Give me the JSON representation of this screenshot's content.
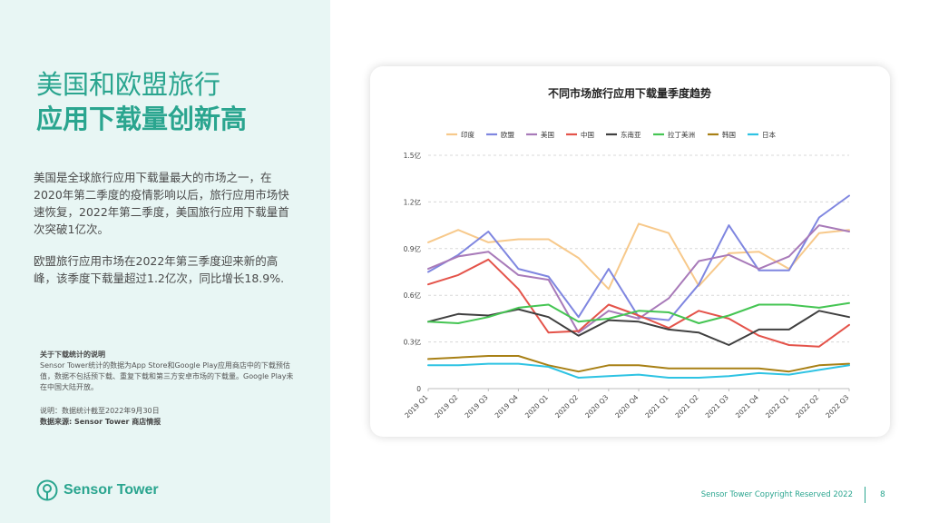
{
  "headline": {
    "line1": "美国和欧盟旅行",
    "line2": "应用下载量创新高"
  },
  "paragraphs": [
    "美国是全球旅行应用下载量最大的市场之一，在2020年第二季度的疫情影响以后，旅行应用市场快速恢复，2022年第二季度，美国旅行应用下载量首次突破1亿次。",
    "欧盟旅行应用市场在2022年第三季度迎来新的高峰，该季度下载量超过1.2亿次，同比增长18.9%."
  ],
  "note": {
    "title": "关于下载统计的说明",
    "body": "Sensor Tower统计的数据为App Store和Google Play应用商店中的下载预估值，数据不包括预下载、重复下载和第三方安卓市场的下载量。Google Play未在中国大陆开放。",
    "date_note": "说明：数据统计截至2022年9月30日",
    "source": "数据来源: Sensor Tower 商店情报"
  },
  "brand": {
    "name": "Sensor Tower",
    "color": "#2aa58f",
    "icon": "sensor-tower-logo-icon"
  },
  "footer": {
    "copyright": "Sensor Tower Copyright Reserved 2022",
    "page": "8"
  },
  "chart_data": {
    "type": "line",
    "title": "不同市场旅行应用下载量季度趋势",
    "xlabel": "",
    "ylabel": "",
    "categories": [
      "2019 Q1",
      "2019 Q2",
      "2019 Q3",
      "2019 Q4",
      "2020 Q1",
      "2020 Q2",
      "2020 Q3",
      "2020 Q4",
      "2021 Q1",
      "2021 Q2",
      "2021 Q3",
      "2021 Q4",
      "2022 Q1",
      "2022 Q2",
      "2022 Q3"
    ],
    "ylim": [
      0,
      1.5
    ],
    "yticks": [
      0,
      0.3,
      0.6,
      0.9,
      1.2,
      1.5
    ],
    "ytick_labels": [
      "0",
      "0.3亿",
      "0.6亿",
      "0.9亿",
      "1.2亿",
      "1.5亿"
    ],
    "grid": true,
    "legend_position": "top",
    "series": [
      {
        "name": "印度",
        "color": "#f7c98b",
        "values": [
          0.94,
          1.02,
          0.94,
          0.96,
          0.96,
          0.84,
          0.64,
          1.06,
          1.0,
          0.66,
          0.87,
          0.88,
          0.77,
          1.0,
          1.02
        ]
      },
      {
        "name": "欧盟",
        "color": "#7f86e0",
        "values": [
          0.75,
          0.86,
          1.01,
          0.77,
          0.72,
          0.46,
          0.77,
          0.46,
          0.44,
          0.67,
          1.05,
          0.76,
          0.76,
          1.1,
          1.24
        ]
      },
      {
        "name": "美国",
        "color": "#a87ab9",
        "values": [
          0.77,
          0.85,
          0.88,
          0.73,
          0.7,
          0.36,
          0.5,
          0.45,
          0.58,
          0.82,
          0.86,
          0.77,
          0.85,
          1.05,
          1.01
        ]
      },
      {
        "name": "中国",
        "color": "#e4534a",
        "values": [
          0.67,
          0.73,
          0.83,
          0.64,
          0.36,
          0.37,
          0.54,
          0.47,
          0.39,
          0.5,
          0.45,
          0.34,
          0.28,
          0.27,
          0.41
        ]
      },
      {
        "name": "东南亚",
        "color": "#404040",
        "values": [
          0.43,
          0.48,
          0.47,
          0.51,
          0.46,
          0.34,
          0.44,
          0.43,
          0.38,
          0.36,
          0.28,
          0.38,
          0.38,
          0.5,
          0.46
        ]
      },
      {
        "name": "拉丁美洲",
        "color": "#45c553",
        "values": [
          0.43,
          0.42,
          0.46,
          0.52,
          0.54,
          0.43,
          0.45,
          0.5,
          0.49,
          0.42,
          0.47,
          0.54,
          0.54,
          0.52,
          0.55
        ]
      },
      {
        "name": "韩国",
        "color": "#a88015",
        "values": [
          0.19,
          0.2,
          0.21,
          0.21,
          0.15,
          0.11,
          0.15,
          0.15,
          0.13,
          0.13,
          0.13,
          0.13,
          0.11,
          0.15,
          0.16
        ]
      },
      {
        "name": "日本",
        "color": "#2ec3e3",
        "values": [
          0.15,
          0.15,
          0.16,
          0.16,
          0.14,
          0.07,
          0.08,
          0.09,
          0.07,
          0.07,
          0.08,
          0.1,
          0.09,
          0.12,
          0.15
        ]
      }
    ]
  }
}
